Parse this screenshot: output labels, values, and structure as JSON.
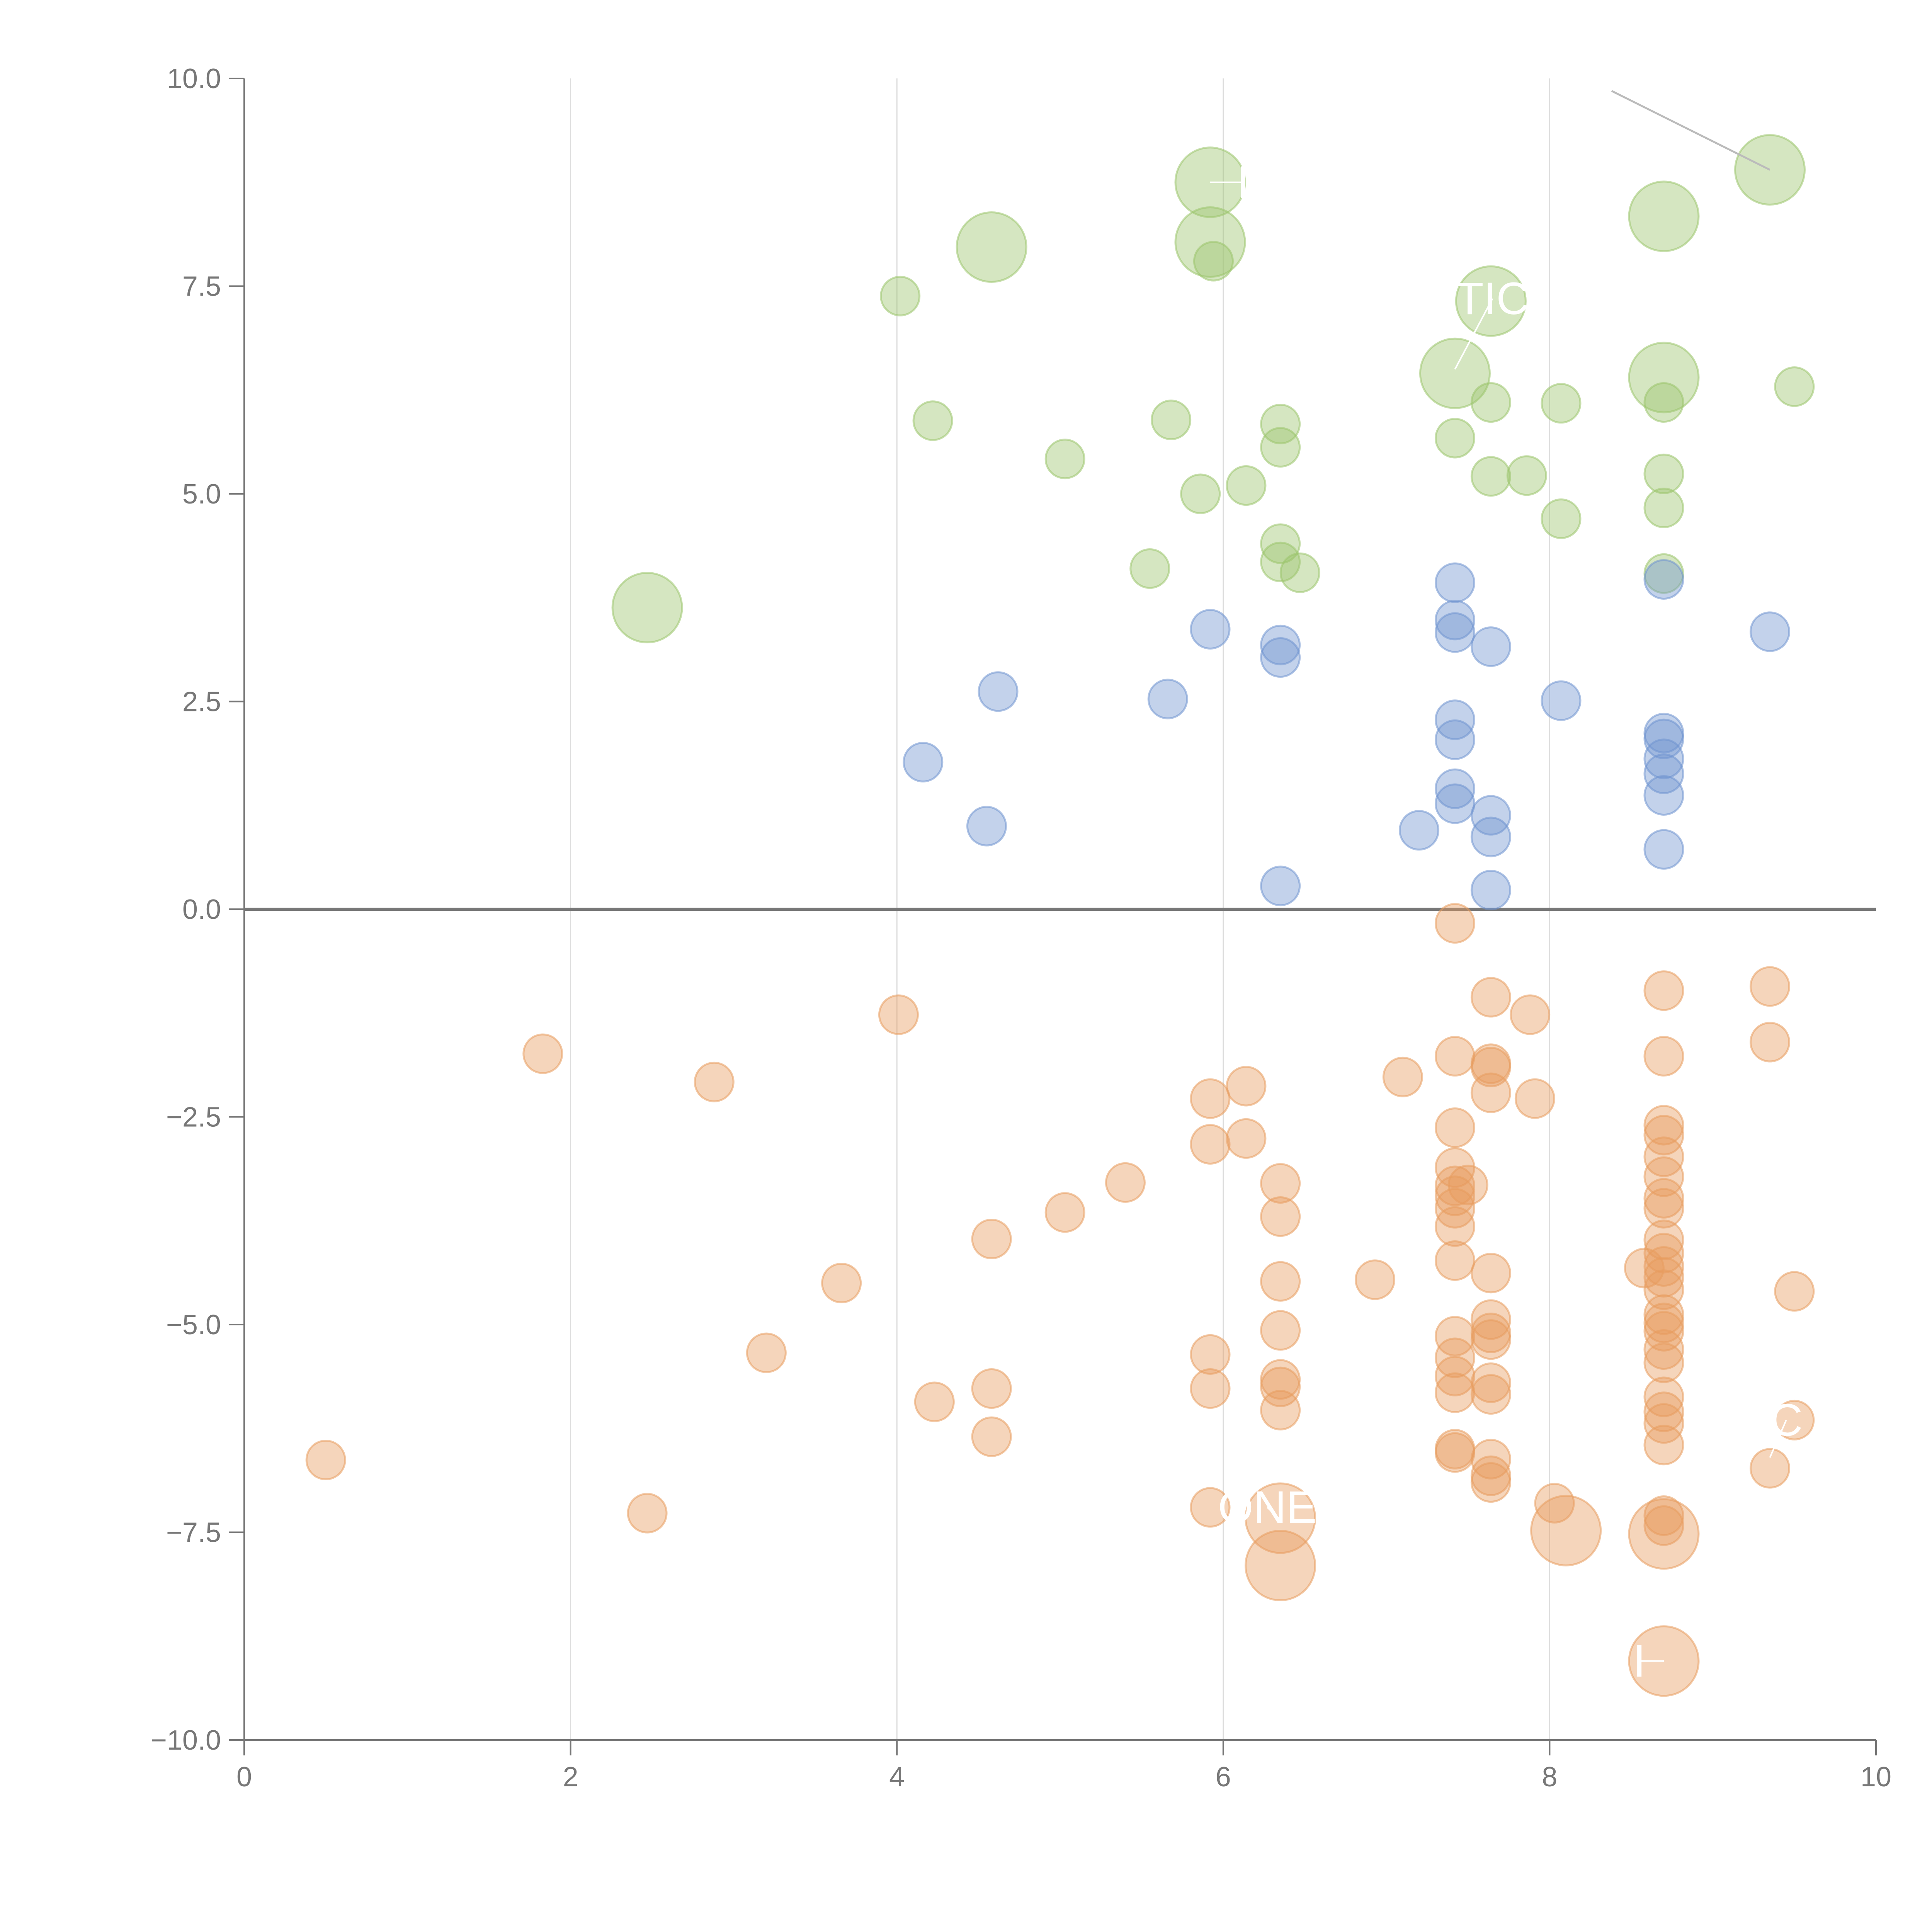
{
  "colors": {
    "upper": "#9bc46c",
    "middle": "#6f94cf",
    "lower": "#e89c5e",
    "axis": "#777777",
    "grid": "#dddddd",
    "leader": "#bbbbbb",
    "annotation": "#ffffff"
  },
  "chart_data": {
    "type": "scatter",
    "title": "",
    "xlabel": "",
    "ylabel": "",
    "xlim": [
      0,
      10
    ],
    "ylim": [
      -10,
      10
    ],
    "grid": "vertical",
    "legend": "none",
    "xticks": [
      0,
      2,
      4,
      6,
      8,
      10
    ],
    "yticks": [
      -10,
      -7.5,
      -5,
      -2.5,
      0,
      2.5,
      5,
      7.5,
      10
    ],
    "xtick_labels": [
      "0",
      "2",
      "4",
      "6",
      "8",
      "10"
    ],
    "ytick_labels": [
      "−10.0",
      "−7.5",
      "−5.0",
      "−2.5",
      "0.0",
      "2.5",
      "5.0",
      "7.5",
      "10.0"
    ],
    "series": [
      {
        "name": "upper",
        "color_key": "upper",
        "points": [
          [
            4.02,
            7.38,
            1
          ],
          [
            4.22,
            5.88,
            1
          ],
          [
            5.03,
            5.42,
            1
          ],
          [
            5.68,
            5.89,
            1
          ],
          [
            5.86,
            5.0,
            1
          ],
          [
            6.14,
            5.1,
            1
          ],
          [
            5.94,
            7.8,
            1
          ],
          [
            6.35,
            5.84,
            1
          ],
          [
            6.35,
            5.56,
            1
          ],
          [
            6.35,
            4.4,
            1
          ],
          [
            6.35,
            4.18,
            1
          ],
          [
            6.47,
            4.05,
            1
          ],
          [
            5.55,
            4.1,
            1
          ],
          [
            7.42,
            5.67,
            1
          ],
          [
            7.64,
            6.1,
            1
          ],
          [
            7.64,
            5.21,
            1
          ],
          [
            7.86,
            5.22,
            1
          ],
          [
            8.07,
            6.09,
            1
          ],
          [
            8.07,
            4.7,
            1
          ],
          [
            8.7,
            6.1,
            1
          ],
          [
            8.7,
            5.24,
            1
          ],
          [
            8.7,
            4.83,
            1
          ],
          [
            8.7,
            4.04,
            1
          ],
          [
            9.5,
            6.29,
            1
          ],
          [
            2.47,
            3.63,
            2
          ],
          [
            4.58,
            7.97,
            2
          ],
          [
            5.92,
            8.75,
            2
          ],
          [
            5.92,
            8.03,
            2
          ],
          [
            7.42,
            6.45,
            2
          ],
          [
            7.64,
            7.32,
            2
          ],
          [
            8.7,
            6.4,
            2
          ],
          [
            8.7,
            8.34,
            2
          ],
          [
            9.35,
            8.9,
            2
          ]
        ]
      },
      {
        "name": "middle",
        "color_key": "middle",
        "points": [
          [
            4.16,
            1.77,
            1
          ],
          [
            4.55,
            1.0,
            1
          ],
          [
            4.62,
            2.62,
            1
          ],
          [
            5.66,
            2.53,
            1
          ],
          [
            5.92,
            3.37,
            1
          ],
          [
            6.35,
            3.18,
            1
          ],
          [
            6.35,
            3.03,
            1
          ],
          [
            6.35,
            0.28,
            1
          ],
          [
            7.2,
            0.95,
            1
          ],
          [
            7.42,
            3.93,
            1
          ],
          [
            7.42,
            3.48,
            1
          ],
          [
            7.42,
            3.33,
            1
          ],
          [
            7.42,
            2.28,
            1
          ],
          [
            7.42,
            2.04,
            1
          ],
          [
            7.42,
            1.45,
            1
          ],
          [
            7.42,
            1.27,
            1
          ],
          [
            7.64,
            3.16,
            1
          ],
          [
            7.64,
            1.13,
            1
          ],
          [
            7.64,
            0.87,
            1
          ],
          [
            7.64,
            0.23,
            1
          ],
          [
            8.07,
            2.51,
            1
          ],
          [
            8.7,
            3.97,
            1
          ],
          [
            8.7,
            2.12,
            1
          ],
          [
            8.7,
            2.05,
            1
          ],
          [
            8.7,
            1.81,
            1
          ],
          [
            8.7,
            1.63,
            1
          ],
          [
            8.7,
            1.37,
            1
          ],
          [
            8.7,
            0.72,
            1
          ],
          [
            9.35,
            3.34,
            1
          ]
        ]
      },
      {
        "name": "lower",
        "color_key": "lower",
        "points": [
          [
            0.5,
            -6.63,
            1
          ],
          [
            1.83,
            -1.74,
            1
          ],
          [
            2.47,
            -7.27,
            1
          ],
          [
            2.88,
            -2.08,
            1
          ],
          [
            3.2,
            -5.34,
            1
          ],
          [
            3.66,
            -4.5,
            1
          ],
          [
            4.01,
            -1.27,
            1
          ],
          [
            4.23,
            -5.93,
            1
          ],
          [
            4.58,
            -3.97,
            1
          ],
          [
            4.58,
            -5.77,
            1
          ],
          [
            4.58,
            -6.35,
            1
          ],
          [
            5.03,
            -3.65,
            1
          ],
          [
            5.4,
            -3.29,
            1
          ],
          [
            5.92,
            -2.28,
            1
          ],
          [
            5.92,
            -2.83,
            1
          ],
          [
            5.92,
            -5.36,
            1
          ],
          [
            5.92,
            -5.77,
            1
          ],
          [
            5.92,
            -7.2,
            1
          ],
          [
            6.14,
            -2.13,
            1
          ],
          [
            6.14,
            -2.76,
            1
          ],
          [
            6.35,
            -3.3,
            1
          ],
          [
            6.35,
            -3.7,
            1
          ],
          [
            6.35,
            -4.48,
            1
          ],
          [
            6.35,
            -5.07,
            1
          ],
          [
            6.35,
            -5.66,
            1
          ],
          [
            6.35,
            -5.75,
            1
          ],
          [
            6.35,
            -6.03,
            1
          ],
          [
            6.93,
            -4.46,
            1
          ],
          [
            7.1,
            -2.02,
            1
          ],
          [
            7.42,
            -0.17,
            1
          ],
          [
            7.42,
            -1.77,
            1
          ],
          [
            7.42,
            -2.63,
            1
          ],
          [
            7.42,
            -3.11,
            1
          ],
          [
            7.42,
            -3.33,
            1
          ],
          [
            7.42,
            -3.45,
            1
          ],
          [
            7.42,
            -3.6,
            1
          ],
          [
            7.42,
            -3.82,
            1
          ],
          [
            7.42,
            -4.23,
            1
          ],
          [
            7.42,
            -5.14,
            1
          ],
          [
            7.42,
            -5.4,
            1
          ],
          [
            7.42,
            -5.62,
            1
          ],
          [
            7.42,
            -5.82,
            1
          ],
          [
            7.42,
            -6.5,
            1
          ],
          [
            7.42,
            -6.54,
            1
          ],
          [
            7.5,
            -3.32,
            1
          ],
          [
            7.64,
            -1.06,
            1
          ],
          [
            7.64,
            -1.86,
            1
          ],
          [
            7.64,
            -1.9,
            1
          ],
          [
            7.64,
            -2.21,
            1
          ],
          [
            7.64,
            -4.38,
            1
          ],
          [
            7.64,
            -4.94,
            1
          ],
          [
            7.64,
            -5.1,
            1
          ],
          [
            7.64,
            -5.18,
            1
          ],
          [
            7.64,
            -5.7,
            1
          ],
          [
            7.64,
            -5.84,
            1
          ],
          [
            7.64,
            -6.62,
            1
          ],
          [
            7.64,
            -6.82,
            1
          ],
          [
            7.64,
            -6.9,
            1
          ],
          [
            7.88,
            -1.27,
            1
          ],
          [
            7.91,
            -2.28,
            1
          ],
          [
            8.03,
            -7.15,
            1
          ],
          [
            8.7,
            -0.98,
            1
          ],
          [
            8.7,
            -1.77,
            1
          ],
          [
            8.7,
            -2.6,
            1
          ],
          [
            8.7,
            -2.72,
            1
          ],
          [
            8.7,
            -2.98,
            1
          ],
          [
            8.7,
            -3.22,
            1
          ],
          [
            8.7,
            -3.48,
            1
          ],
          [
            8.7,
            -3.6,
            1
          ],
          [
            8.7,
            -3.98,
            1
          ],
          [
            8.7,
            -4.14,
            1
          ],
          [
            8.7,
            -4.3,
            1
          ],
          [
            8.7,
            -4.43,
            1
          ],
          [
            8.7,
            -4.58,
            1
          ],
          [
            8.7,
            -4.88,
            1
          ],
          [
            8.7,
            -4.98,
            1
          ],
          [
            8.7,
            -5.08,
            1
          ],
          [
            8.7,
            -5.3,
            1
          ],
          [
            8.7,
            -5.46,
            1
          ],
          [
            8.7,
            -5.87,
            1
          ],
          [
            8.7,
            -6.05,
            1
          ],
          [
            8.7,
            -6.19,
            1
          ],
          [
            8.7,
            -6.45,
            1
          ],
          [
            8.7,
            -7.3,
            1
          ],
          [
            8.7,
            -7.42,
            1
          ],
          [
            8.58,
            -4.32,
            1
          ],
          [
            9.35,
            -0.93,
            1
          ],
          [
            9.35,
            -1.6,
            1
          ],
          [
            9.35,
            -6.73,
            1
          ],
          [
            9.5,
            -4.6,
            1
          ],
          [
            9.5,
            -6.15,
            1
          ],
          [
            6.35,
            -7.33,
            2
          ],
          [
            6.35,
            -7.9,
            2
          ],
          [
            8.1,
            -7.48,
            2
          ],
          [
            8.7,
            -7.52,
            2
          ],
          [
            8.7,
            -9.05,
            2
          ]
        ]
      }
    ],
    "annotations": [
      {
        "text": "I",
        "x": 6.12,
        "y": 8.75,
        "ax": 5.92,
        "ay": 8.75
      },
      {
        "text": "TIC",
        "x": 7.65,
        "y": 7.35,
        "ax": 7.42,
        "ay": 6.5
      },
      {
        "text": "ONE",
        "x": 6.27,
        "y": -7.2,
        "ax": 6.35,
        "ay": -7.35
      },
      {
        "text": "I",
        "x": 8.55,
        "y": -9.05,
        "ax": 8.7,
        "ay": -9.05
      },
      {
        "text": "C",
        "x": 9.45,
        "y": -6.15,
        "ax": 9.35,
        "ay": -6.6
      }
    ]
  }
}
